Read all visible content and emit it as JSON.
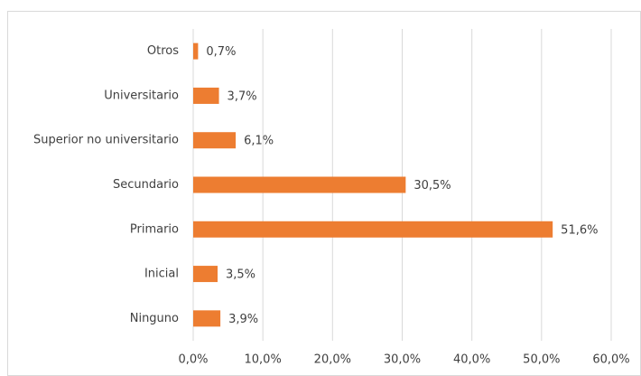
{
  "chart_data": {
    "type": "barh",
    "categories": [
      "Otros",
      "Universitario",
      "Superior no universitario",
      "Secundario",
      "Primario",
      "Inicial",
      "Ninguno"
    ],
    "values": [
      0.7,
      3.7,
      6.1,
      30.5,
      51.6,
      3.5,
      3.9
    ],
    "value_labels": [
      "0,7%",
      "3,7%",
      "6,1%",
      "30,5%",
      "51,6%",
      "3,5%",
      "3,9%"
    ],
    "color": "#ed7d31",
    "xlim": [
      0,
      60
    ],
    "xticks": [
      {
        "value": 0,
        "label": "0,0%"
      },
      {
        "value": 10,
        "label": "10,0%"
      },
      {
        "value": 20,
        "label": "20,0%"
      },
      {
        "value": 30,
        "label": "30,0%"
      },
      {
        "value": 40,
        "label": "40,0%"
      },
      {
        "value": 50,
        "label": "50,0%"
      },
      {
        "value": 60,
        "label": "60,0%"
      }
    ],
    "grid": true
  }
}
